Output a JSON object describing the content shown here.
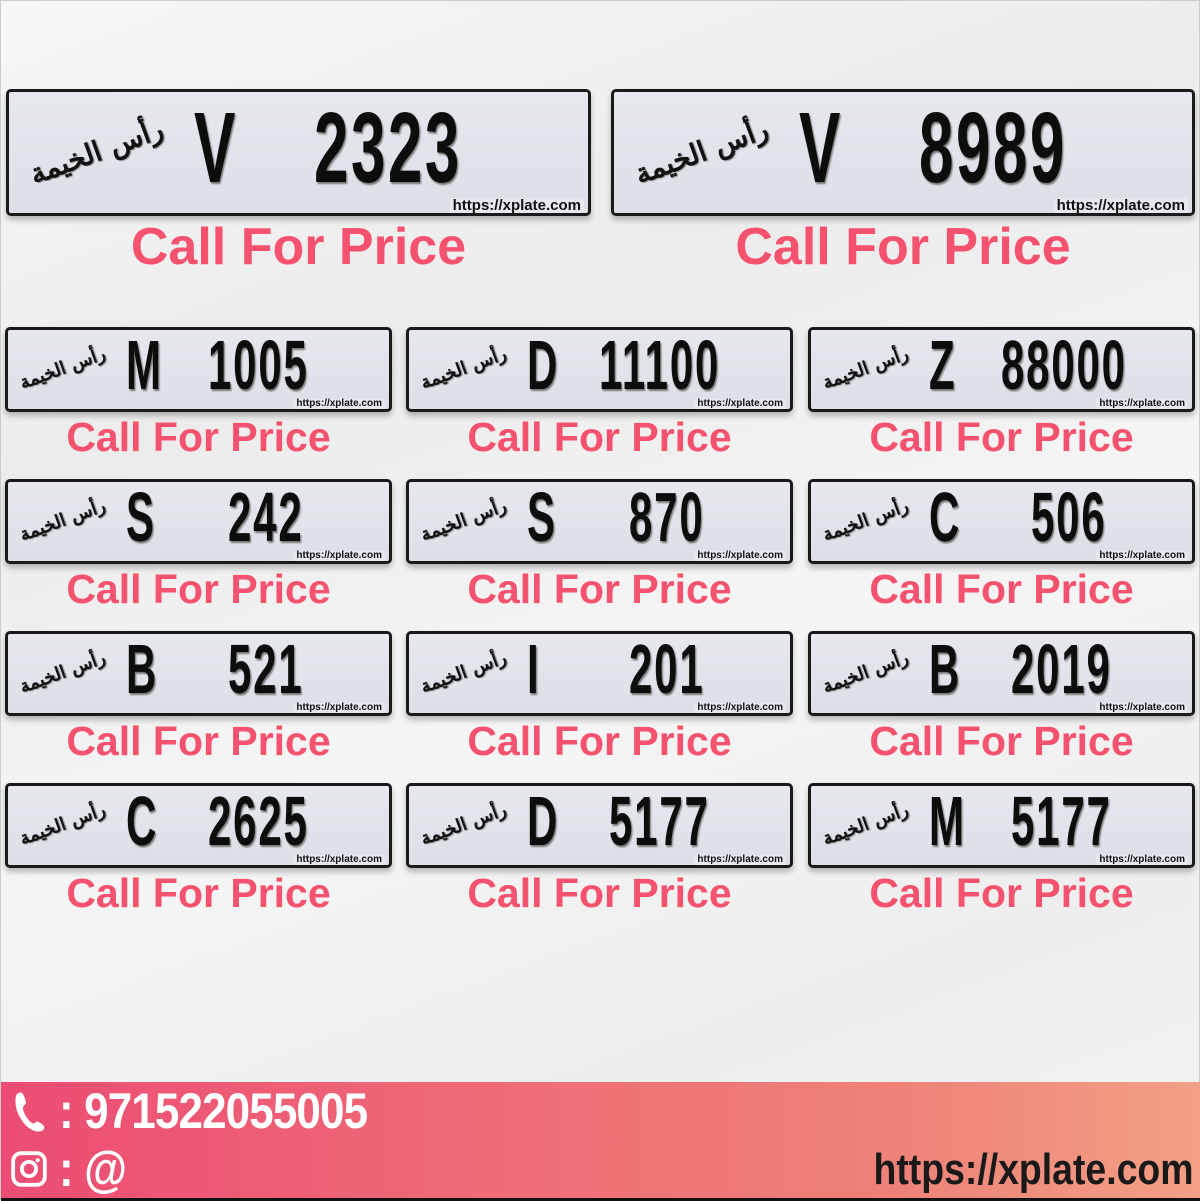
{
  "emirate_script": "رأس الخيمة",
  "watermark": "https://xplate.com",
  "price_label": "Call For Price",
  "colors": {
    "price": "#f5526f",
    "footer_start": "#ec4c74",
    "footer_end": "#f3a084"
  },
  "featured_plates": [
    {
      "letter": "V",
      "number": "2323"
    },
    {
      "letter": "V",
      "number": "8989"
    }
  ],
  "plates": [
    {
      "letter": "M",
      "number": "1005"
    },
    {
      "letter": "D",
      "number": "11100"
    },
    {
      "letter": "Z",
      "number": "88000"
    },
    {
      "letter": "S",
      "number": "242"
    },
    {
      "letter": "S",
      "number": "870"
    },
    {
      "letter": "C",
      "number": "506"
    },
    {
      "letter": "B",
      "number": "521"
    },
    {
      "letter": "I",
      "number": "201"
    },
    {
      "letter": "B",
      "number": "2019"
    },
    {
      "letter": "C",
      "number": "2625"
    },
    {
      "letter": "D",
      "number": "5177"
    },
    {
      "letter": "M",
      "number": "5177"
    }
  ],
  "footer": {
    "phone_icon": "phone-icon",
    "phone": ": 971522055005",
    "instagram_icon": "instagram-icon",
    "instagram": ": @",
    "website": "https://xplate.com"
  }
}
